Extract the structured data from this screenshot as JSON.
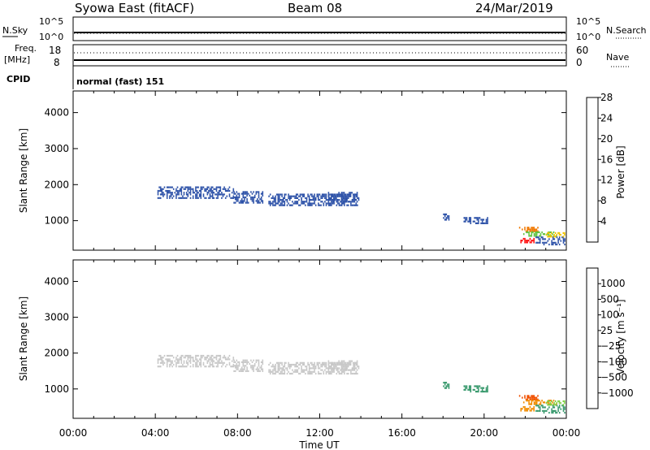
{
  "header": {
    "station": "Syowa East (fitACF)",
    "beam": "Beam 08",
    "date": "24/Mar/2019"
  },
  "top_panel": {
    "left_label": "N.Sky",
    "left_ticks": [
      "10^5",
      "10^0"
    ],
    "right_ticks": [
      "10^5",
      "10^0"
    ],
    "right_label": "N.Search"
  },
  "freq_panel": {
    "left_label_1": "Freq.",
    "left_label_2": "[MHz]",
    "left_ticks": [
      "18",
      "8"
    ],
    "right_ticks": [
      "60",
      "0"
    ],
    "right_label": "Nave",
    "cpid_label": "CPID",
    "cpid_value": "normal (fast) 151"
  },
  "chart_data": [
    {
      "type": "heatmap",
      "name": "power",
      "ylabel": "Slant Range [km]",
      "xlabel": "Time UT",
      "x_ticks": [
        "00:00",
        "04:00",
        "08:00",
        "12:00",
        "16:00",
        "20:00",
        "00:00"
      ],
      "y_ticks": [
        "1000",
        "2000",
        "3000",
        "4000"
      ],
      "xlim_hours": [
        0,
        24
      ],
      "ylim_km": [
        180,
        4600
      ],
      "colorbar": {
        "label": "Power [dB]",
        "tick_labels": [
          "4",
          "8",
          "12",
          "16",
          "20",
          "24",
          "28"
        ],
        "colors": [
          "#1010ff",
          "#2d52a8",
          "#3a8c6e",
          "#5fc340",
          "#f0c400",
          "#f07800",
          "#ff1010"
        ]
      },
      "echo_regions": [
        {
          "t0": 4.1,
          "t1": 7.8,
          "r0": 1640,
          "r1": 1950,
          "color_index": 1
        },
        {
          "t0": 7.8,
          "t1": 9.2,
          "r0": 1500,
          "r1": 1820,
          "color_index": 1
        },
        {
          "t0": 9.5,
          "t1": 13.9,
          "r0": 1450,
          "r1": 1750,
          "color_index": 1
        },
        {
          "t0": 12.4,
          "t1": 13.8,
          "r0": 1550,
          "r1": 1800,
          "color_index": 1
        },
        {
          "t0": 18.0,
          "t1": 18.3,
          "r0": 1050,
          "r1": 1200,
          "color_index": 1
        },
        {
          "t0": 19.0,
          "t1": 20.2,
          "r0": 920,
          "r1": 1100,
          "color_index": 1
        },
        {
          "t0": 21.7,
          "t1": 22.6,
          "r0": 720,
          "r1": 830,
          "color_index": 5
        },
        {
          "t0": 21.9,
          "t1": 23.5,
          "r0": 560,
          "r1": 700,
          "color_index": 3
        },
        {
          "t0": 22.5,
          "t1": 23.9,
          "r0": 360,
          "r1": 560,
          "color_index": 1
        },
        {
          "t0": 21.7,
          "t1": 22.4,
          "r0": 400,
          "r1": 520,
          "color_index": 6
        },
        {
          "t0": 23.0,
          "t1": 23.9,
          "r0": 560,
          "r1": 680,
          "color_index": 4
        }
      ]
    },
    {
      "type": "heatmap",
      "name": "velocity",
      "ylabel": "Slant Range [km]",
      "xlabel": "Time UT",
      "x_ticks": [
        "00:00",
        "04:00",
        "08:00",
        "12:00",
        "16:00",
        "20:00",
        "00:00"
      ],
      "y_ticks": [
        "1000",
        "2000",
        "3000",
        "4000"
      ],
      "xlim_hours": [
        0,
        24
      ],
      "ylim_km": [
        180,
        4600
      ],
      "colorbar": {
        "label": "Velocity [m s⁻¹]",
        "tick_labels": [
          "1000",
          "500",
          "100",
          "25",
          "−25",
          "−100",
          "−500",
          "−1000"
        ],
        "colors": [
          "#1a3fc8",
          "#2d6aa8",
          "#3a9a6e",
          "#7ed040",
          "#c8c8c8",
          "#f0c400",
          "#f08c00",
          "#f05000",
          "#ff1010"
        ]
      },
      "echo_regions": [
        {
          "t0": 4.1,
          "t1": 7.8,
          "r0": 1640,
          "r1": 1950,
          "color_index": 4
        },
        {
          "t0": 7.8,
          "t1": 9.2,
          "r0": 1500,
          "r1": 1820,
          "color_index": 4
        },
        {
          "t0": 9.5,
          "t1": 13.9,
          "r0": 1450,
          "r1": 1750,
          "color_index": 4
        },
        {
          "t0": 12.4,
          "t1": 13.8,
          "r0": 1550,
          "r1": 1800,
          "color_index": 4
        },
        {
          "t0": 18.0,
          "t1": 18.3,
          "r0": 1050,
          "r1": 1200,
          "color_index": 2
        },
        {
          "t0": 19.0,
          "t1": 20.2,
          "r0": 920,
          "r1": 1100,
          "color_index": 2
        },
        {
          "t0": 21.7,
          "t1": 22.6,
          "r0": 720,
          "r1": 830,
          "color_index": 7
        },
        {
          "t0": 21.9,
          "t1": 23.5,
          "r0": 560,
          "r1": 700,
          "color_index": 6
        },
        {
          "t0": 22.5,
          "t1": 23.9,
          "r0": 360,
          "r1": 560,
          "color_index": 2
        },
        {
          "t0": 21.7,
          "t1": 22.4,
          "r0": 400,
          "r1": 520,
          "color_index": 6
        },
        {
          "t0": 23.0,
          "t1": 23.9,
          "r0": 560,
          "r1": 680,
          "color_index": 3
        }
      ]
    }
  ]
}
